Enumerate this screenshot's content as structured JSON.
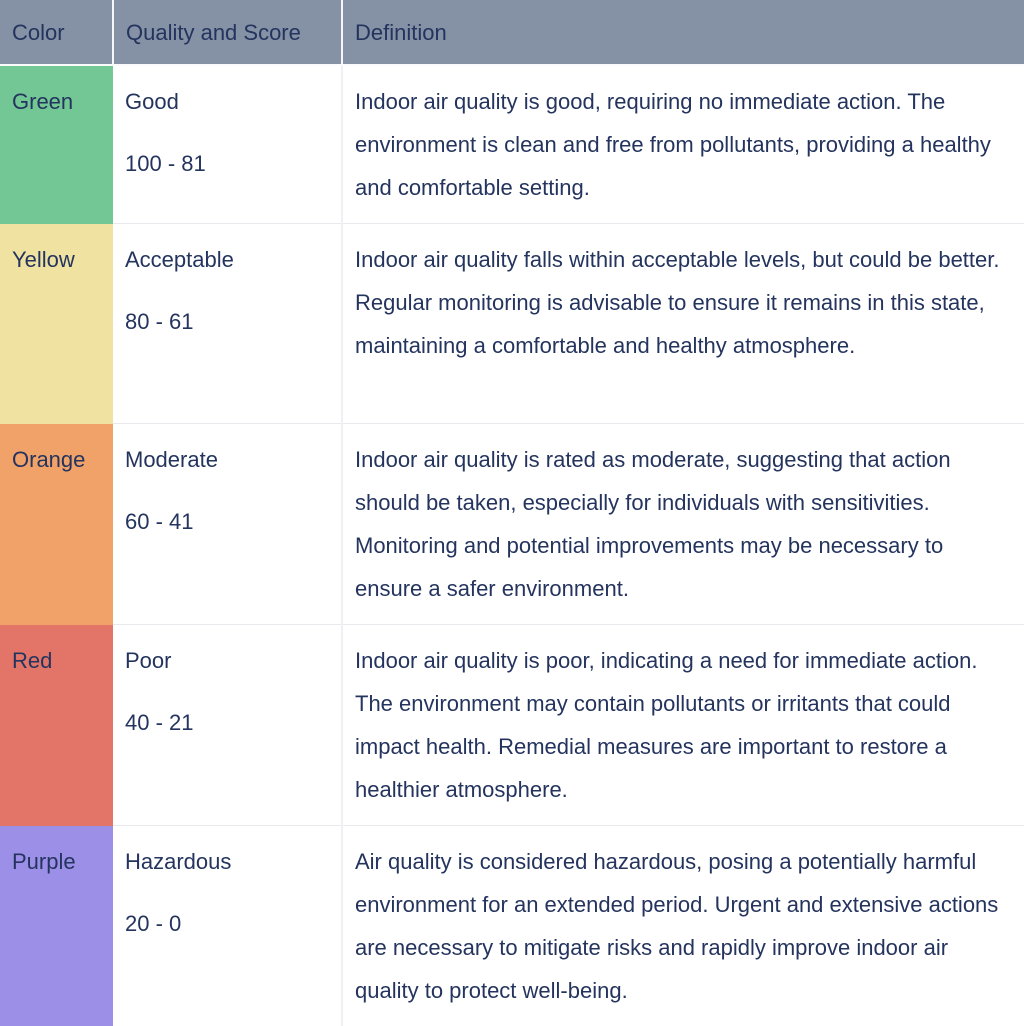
{
  "table": {
    "headers": [
      "Color",
      "Quality and Score",
      "Definition"
    ],
    "rows": [
      {
        "color": "Green",
        "color_hex": "#72c795",
        "quality": "Good",
        "score": "100 - 81",
        "definition": "Indoor air quality is good, requiring no immediate action. The environment is clean and free from pollutants, providing a healthy and comfortable setting."
      },
      {
        "color": "Yellow",
        "color_hex": "#f0e3a2",
        "quality": "Acceptable",
        "score": "80 - 61",
        "definition": "Indoor air quality falls within acceptable levels, but could be better. Regular monitoring is advisable to ensure it remains in this state, maintaining a comfortable and healthy atmosphere."
      },
      {
        "color": "Orange",
        "color_hex": "#f1a268",
        "quality": "Moderate",
        "score": "60 - 41",
        "definition": "Indoor air quality is rated as moderate, suggesting that action should be taken, especially for individuals with sensitivities. Monitoring and potential improvements may be necessary to ensure a safer environment."
      },
      {
        "color": "Red",
        "color_hex": "#e27568",
        "quality": "Poor",
        "score": "40 - 21",
        "definition": "Indoor air quality is poor, indicating a need for immediate action. The environment may contain pollutants or irritants that could impact health. Remedial measures are important to restore a healthier atmosphere."
      },
      {
        "color": "Purple",
        "color_hex": "#9c8fe8",
        "quality": "Hazardous",
        "score": "20 - 0",
        "definition": "Air quality is considered hazardous, posing a potentially harmful environment for an extended period. Urgent and extensive actions are necessary to mitigate risks and rapidly improve indoor air quality to protect well-being."
      }
    ]
  },
  "colors": {
    "header_bg": "#8591a4",
    "text": "#24345e",
    "row_border": "#e8e9ed",
    "column_border": "#eef0f3"
  }
}
